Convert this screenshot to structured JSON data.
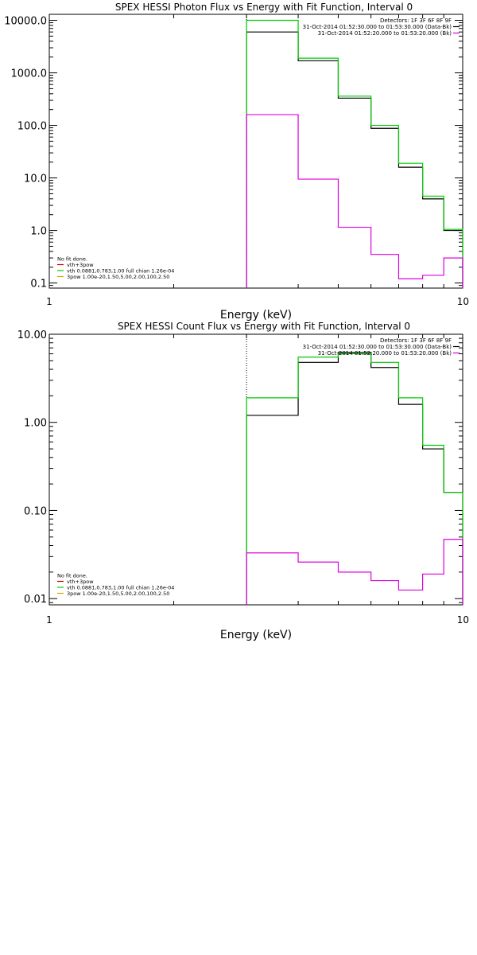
{
  "chart_data": [
    {
      "type": "line",
      "title": "SPEX HESSI Photon Flux vs Energy with Fit Function, Interval 0",
      "xlabel": "Energy (keV)",
      "ylabel": "",
      "x_scale": "log",
      "y_scale": "log",
      "xlim": [
        1,
        10
      ],
      "ylim": [
        0.08,
        13000
      ],
      "x_ticks": [
        {
          "value": 1,
          "label": "1"
        },
        {
          "value": 10,
          "label": "10"
        }
      ],
      "y_ticks": [
        {
          "value": 0.1,
          "label": "0.1"
        },
        {
          "value": 1,
          "label": "1.0"
        },
        {
          "value": 10,
          "label": "10.0"
        },
        {
          "value": 100,
          "label": "100.0"
        },
        {
          "value": 1000,
          "label": "1000.0"
        },
        {
          "value": 10000,
          "label": "10000.0"
        }
      ],
      "fit_start_energy": 3,
      "bin_edges": [
        3,
        4,
        5,
        6,
        7,
        8,
        9,
        10
      ],
      "legend_top": {
        "placement": "top-right",
        "entries": [
          {
            "text": "Detectors: 1F 3F 6F 8F 9F",
            "color": null
          },
          {
            "text": "31-Oct-2014 01:52:30.000 to 01:53:30.000 (Data-Bk)",
            "color": "#000000"
          },
          {
            "text": "31-Oct-2014 01:52:20.000 to 01:53:20.000 (Bk)",
            "color": "#dd00dd"
          }
        ]
      },
      "legend_bottom": {
        "placement": "bottom-left",
        "entries": [
          {
            "text": "No fit done.",
            "color": null
          },
          {
            "text": "vth+3pow",
            "color": "#cc0000"
          },
          {
            "text": "vth 0.0881,0.783,1.00  full chian 1.26e-04",
            "color": "#00cc00"
          },
          {
            "text": "3pow 1.00e-20,1.50,5.00,2.00,100,2.50",
            "color": "#ccaa00"
          }
        ]
      },
      "series": [
        {
          "color": "#000000",
          "values": [
            6000,
            1700,
            330,
            88,
            16,
            4,
            1
          ]
        },
        {
          "color": "#00cc00",
          "values": [
            10000,
            1900,
            360,
            100,
            19,
            4.5,
            1.05
          ]
        },
        {
          "color": "#dd00dd",
          "values": [
            160,
            9.5,
            1.15,
            0.35,
            0.12,
            0.14,
            0.3
          ]
        }
      ]
    },
    {
      "type": "line",
      "title": "SPEX HESSI Count Flux vs Energy with Fit Function, Interval 0",
      "xlabel": "Energy (keV)",
      "ylabel": "",
      "x_scale": "log",
      "y_scale": "log",
      "xlim": [
        1,
        10
      ],
      "ylim": [
        0.0085,
        10
      ],
      "x_ticks": [
        {
          "value": 1,
          "label": "1"
        },
        {
          "value": 10,
          "label": "10"
        }
      ],
      "y_ticks": [
        {
          "value": 0.01,
          "label": "0.01"
        },
        {
          "value": 0.1,
          "label": "0.10"
        },
        {
          "value": 1,
          "label": "1.00"
        },
        {
          "value": 10,
          "label": "10.00"
        }
      ],
      "fit_start_energy": 3,
      "bin_edges": [
        3,
        4,
        5,
        6,
        7,
        8,
        9,
        10
      ],
      "legend_top": {
        "placement": "top-right",
        "entries": [
          {
            "text": "Detectors: 1F 3F 6F 8F 9F",
            "color": null
          },
          {
            "text": "31-Oct-2014 01:52:30.000 to 01:53:30.000 (Data-Bk)",
            "color": "#000000"
          },
          {
            "text": "31-Oct-2014 01:52:20.000 to 01:53:20.000 (Bk)",
            "color": "#dd00dd"
          }
        ]
      },
      "legend_bottom": {
        "placement": "bottom-left",
        "entries": [
          {
            "text": "No fit done.",
            "color": null
          },
          {
            "text": "vth+3pow",
            "color": "#cc0000"
          },
          {
            "text": "vth 0.0881,0.783,1.00  full chian 1.26e-04",
            "color": "#00cc00"
          },
          {
            "text": "3pow 1.00e-20,1.50,5.00,2.00,100,2.50",
            "color": "#ccaa00"
          }
        ]
      },
      "series": [
        {
          "color": "#000000",
          "values": [
            1.2,
            4.8,
            6.2,
            4.2,
            1.6,
            0.5,
            0.16
          ]
        },
        {
          "color": "#00cc00",
          "values": [
            1.9,
            5.5,
            6.0,
            4.8,
            1.9,
            0.55,
            0.16
          ]
        },
        {
          "color": "#dd00dd",
          "values": [
            0.033,
            0.026,
            0.02,
            0.016,
            0.0125,
            0.019,
            0.047
          ]
        }
      ]
    }
  ]
}
